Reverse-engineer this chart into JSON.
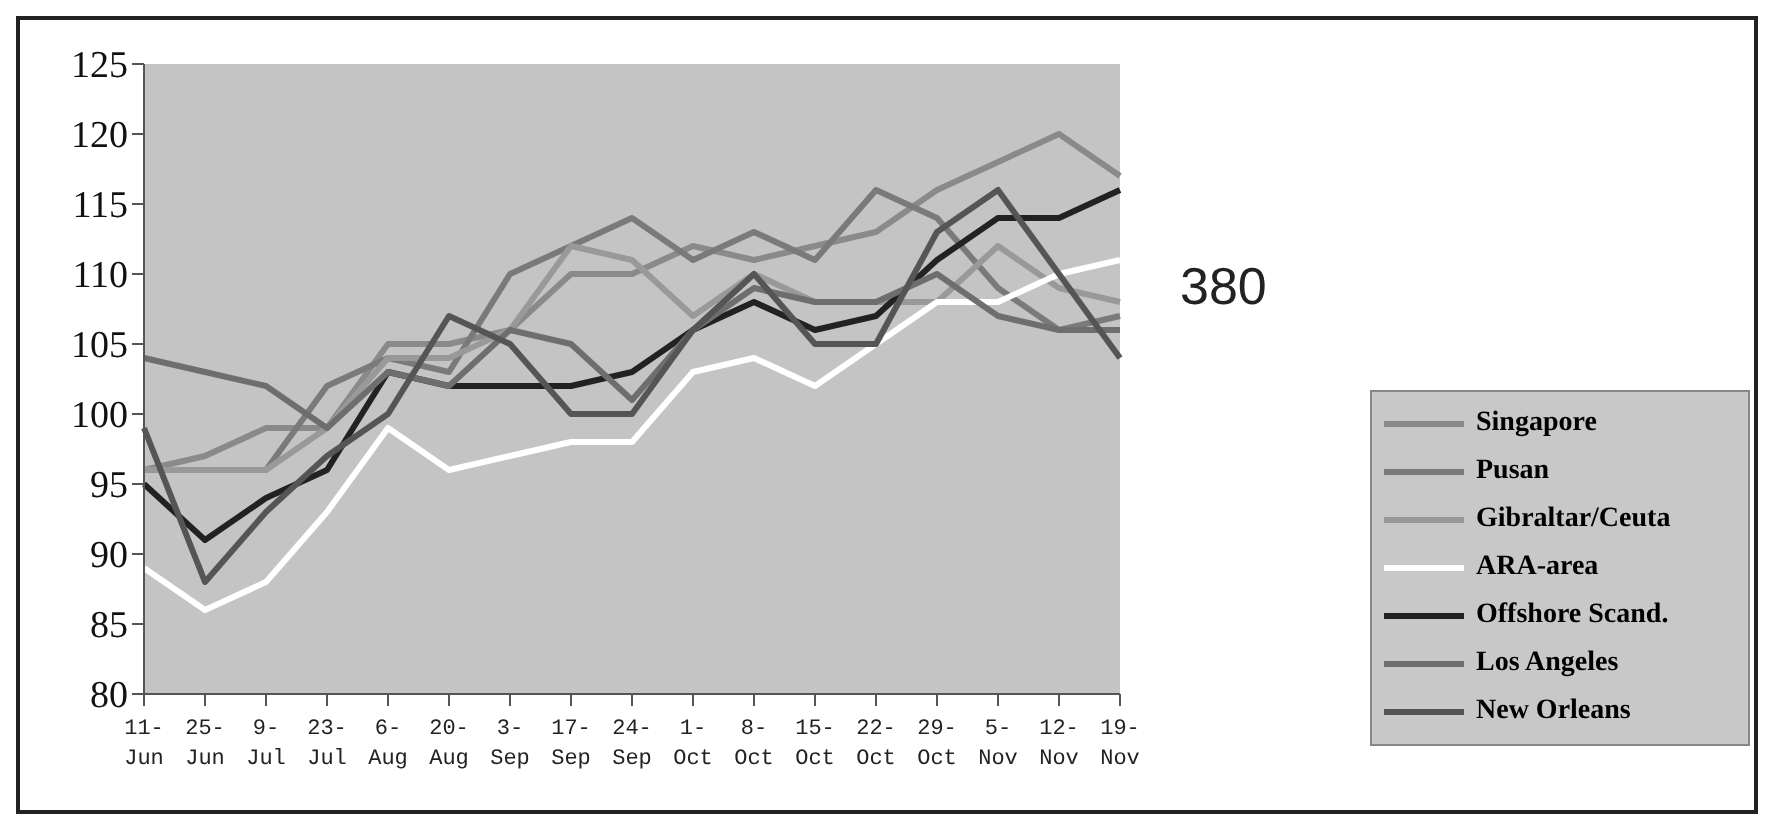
{
  "chart_data": {
    "type": "line",
    "categories": [
      "11-\nJun",
      "25-\nJun",
      "9-\nJul",
      "23-\nJul",
      "6-\nAug",
      "20-\nAug",
      "3-\nSep",
      "17-\nSep",
      "24-\nSep",
      "1-\nOct",
      "8-\nOct",
      "15-\nOct",
      "22-\nOct",
      "29-\nOct",
      "5-\nNov",
      "12-\nNov",
      "19-\nNov"
    ],
    "series": [
      {
        "name": "Singapore",
        "color": "#8a8a8a",
        "values": [
          96,
          97,
          99,
          99,
          105,
          105,
          106,
          110,
          110,
          112,
          111,
          112,
          113,
          116,
          118,
          120,
          117
        ]
      },
      {
        "name": "Pusan",
        "color": "#7a7a7a",
        "values": [
          96,
          96,
          96,
          102,
          104,
          103,
          110,
          112,
          114,
          111,
          113,
          111,
          116,
          114,
          109,
          106,
          107
        ]
      },
      {
        "name": "Gibraltar/Ceuta",
        "color": "#999999",
        "values": [
          96,
          96,
          96,
          99,
          104,
          104,
          106,
          112,
          111,
          107,
          110,
          108,
          108,
          108,
          112,
          109,
          108
        ]
      },
      {
        "name": "ARA-area",
        "color": "#ffffff",
        "values": [
          89,
          86,
          88,
          93,
          99,
          96,
          97,
          98,
          98,
          103,
          104,
          102,
          105,
          108,
          108,
          110,
          111
        ]
      },
      {
        "name": "Offshore Scand.",
        "color": "#222222",
        "values": [
          95,
          91,
          94,
          96,
          103,
          102,
          102,
          102,
          103,
          106,
          108,
          106,
          107,
          111,
          114,
          114,
          116
        ]
      },
      {
        "name": "Los Angeles",
        "color": "#6e6e6e",
        "values": [
          104,
          103,
          102,
          99,
          103,
          102,
          106,
          105,
          101,
          106,
          109,
          108,
          108,
          110,
          107,
          106,
          106
        ]
      },
      {
        "name": "New Orleans",
        "color": "#555555",
        "values": [
          99,
          88,
          93,
          97,
          100,
          107,
          105,
          100,
          100,
          106,
          110,
          105,
          105,
          113,
          116,
          110,
          104
        ]
      }
    ],
    "ylim": [
      80,
      125
    ],
    "yticks": [
      80,
      85,
      90,
      95,
      100,
      105,
      110,
      115,
      120,
      125
    ],
    "grid": false,
    "legend": "right",
    "annotations": [
      "380"
    ]
  }
}
